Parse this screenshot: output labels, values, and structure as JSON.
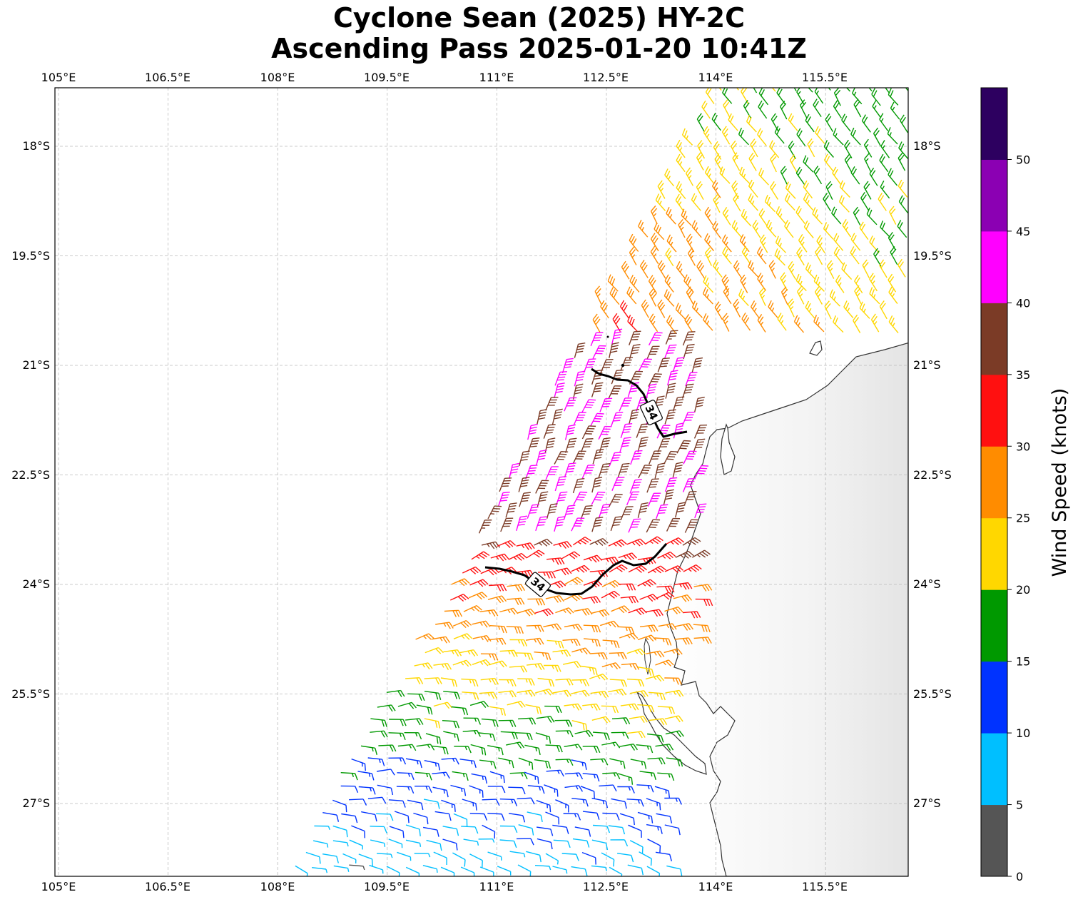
{
  "title": {
    "line1": "Cyclone Sean (2025) HY-2C",
    "line2": "Ascending Pass 2025-01-20 10:41Z"
  },
  "axes": {
    "lon_ticks": [
      "105°E",
      "106.5°E",
      "108°E",
      "109.5°E",
      "111°E",
      "112.5°E",
      "114°E",
      "115.5°E"
    ],
    "lat_ticks": [
      "18°S",
      "19.5°S",
      "21°S",
      "22.5°S",
      "24°S",
      "25.5°S",
      "27°S"
    ]
  },
  "colorbar": {
    "label": "Wind Speed (knots)",
    "tick_labels": [
      "0",
      "5",
      "10",
      "15",
      "20",
      "25",
      "30",
      "35",
      "40",
      "45",
      "50"
    ],
    "colors": [
      "#555555",
      "#00bfff",
      "#0033ff",
      "#009900",
      "#ffd700",
      "#ff8c00",
      "#ff1010",
      "#7b3b26",
      "#ff00ff",
      "#8b00b3",
      "#2d0060"
    ]
  },
  "contours": [
    {
      "label": "34"
    },
    {
      "label": "34"
    }
  ]
}
